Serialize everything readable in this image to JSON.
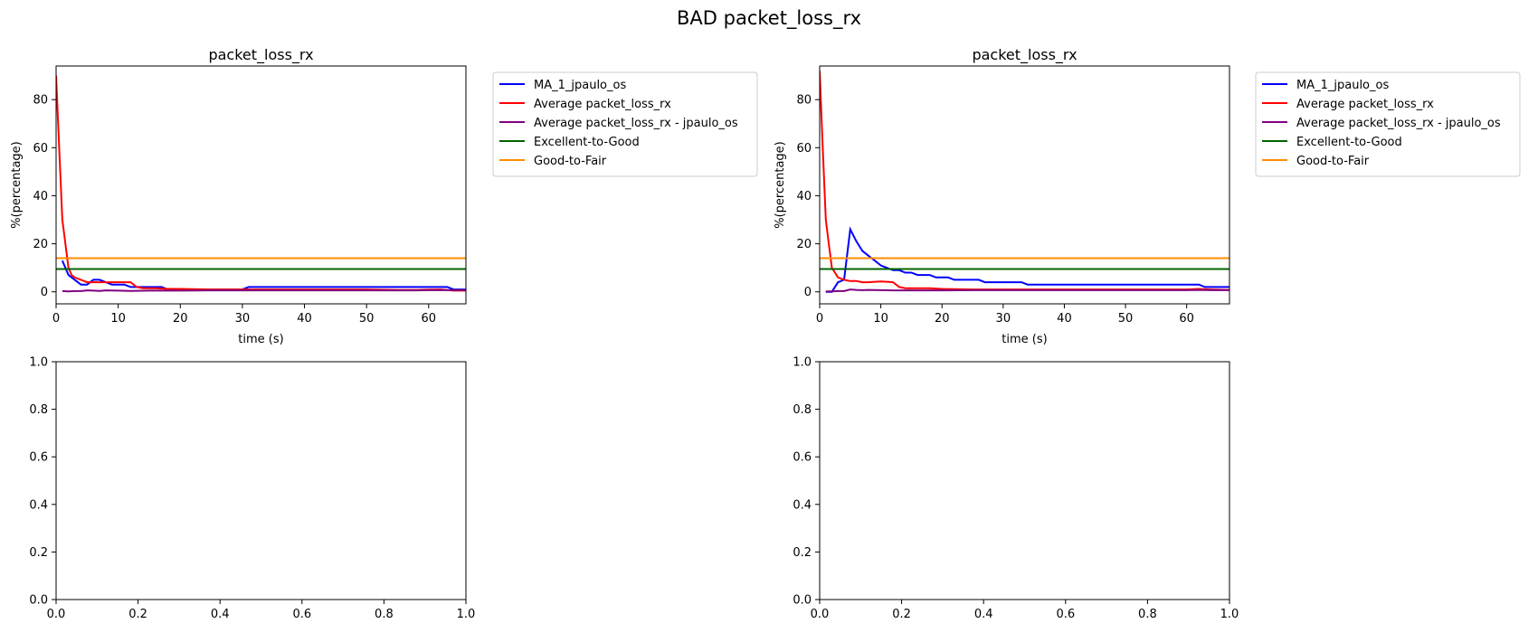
{
  "figure": {
    "suptitle": "BAD packet_loss_rx"
  },
  "colors": {
    "MA_1_jpaulo_os": "#0000ff",
    "Average packet_loss_rx": "#ff0000",
    "Average packet_loss_rx - jpaulo_os": "#800080",
    "Excellent-to-Good": "#006400",
    "Good-to-Fair": "#ff8c00"
  },
  "chart_data": [
    {
      "type": "line",
      "title": "packet_loss_rx",
      "xlabel": "time (s)",
      "ylabel": "%(percentage)",
      "xlim": [
        0,
        66
      ],
      "ylim": [
        -5,
        94
      ],
      "xticks": [
        0,
        10,
        20,
        30,
        40,
        50,
        60
      ],
      "yticks": [
        0,
        20,
        40,
        60,
        80
      ],
      "legend": "outside upper right",
      "series": [
        {
          "name": "MA_1_jpaulo_os",
          "x": [
            1,
            2,
            3,
            4,
            5,
            6,
            7,
            8,
            9,
            10,
            11,
            12,
            13,
            14,
            15,
            16,
            17,
            18,
            20,
            25,
            30,
            31,
            40,
            50,
            60,
            63,
            64,
            66
          ],
          "y": [
            13,
            7,
            5,
            3,
            3,
            5,
            5,
            4,
            3,
            3,
            3,
            2,
            2,
            2,
            2,
            2,
            2,
            1,
            1,
            1,
            1,
            2,
            2,
            2,
            2,
            2,
            1,
            1
          ]
        },
        {
          "name": "Average packet_loss_rx",
          "x": [
            0,
            0.5,
            1,
            1.5,
            2,
            2.5,
            3,
            4,
            5,
            6,
            7,
            8,
            9,
            10,
            11,
            12,
            13,
            14,
            16,
            18,
            20,
            25,
            30,
            40,
            50,
            55,
            58,
            60,
            62,
            64,
            66
          ],
          "y": [
            90,
            60,
            30,
            20,
            10,
            7,
            6,
            5,
            4,
            4,
            4,
            4,
            4,
            4,
            4,
            4,
            2,
            1.5,
            1.5,
            1.2,
            1.2,
            1.0,
            1.0,
            1.0,
            1.0,
            0.8,
            0.8,
            0.9,
            1.0,
            0.5,
            0.5
          ]
        },
        {
          "name": "Average packet_loss_rx - jpaulo_os",
          "x": [
            1,
            2,
            3,
            4,
            5,
            6,
            7,
            8,
            10,
            12,
            15,
            20,
            25,
            30,
            40,
            50,
            55,
            58,
            60,
            62,
            64,
            66
          ],
          "y": [
            0.3,
            0.2,
            0.3,
            0.3,
            0.6,
            0.5,
            0.4,
            0.6,
            0.5,
            0.4,
            0.5,
            0.5,
            0.6,
            0.6,
            0.6,
            0.6,
            0.6,
            0.6,
            0.7,
            0.7,
            0.7,
            0.7
          ]
        },
        {
          "name": "Excellent-to-Good",
          "x": [
            0,
            66
          ],
          "y": [
            9.5,
            9.5
          ]
        },
        {
          "name": "Good-to-Fair",
          "x": [
            0,
            66
          ],
          "y": [
            14,
            14
          ]
        }
      ]
    },
    {
      "type": "line",
      "title": "packet_loss_rx",
      "xlabel": "time (s)",
      "ylabel": "%(percentage)",
      "xlim": [
        0,
        67
      ],
      "ylim": [
        -5,
        94
      ],
      "xticks": [
        0,
        10,
        20,
        30,
        40,
        50,
        60
      ],
      "yticks": [
        0,
        20,
        40,
        60,
        80
      ],
      "legend": "outside upper right",
      "series": [
        {
          "name": "MA_1_jpaulo_os",
          "x": [
            1,
            2,
            3,
            4,
            5,
            6,
            7,
            8,
            9,
            10,
            11,
            12,
            13,
            14,
            15,
            16,
            17,
            18,
            19,
            20,
            21,
            22,
            23,
            24,
            25,
            26,
            27,
            28,
            30,
            32,
            33,
            34,
            36,
            40,
            50,
            60,
            62,
            63,
            65,
            67
          ],
          "y": [
            0,
            0,
            4,
            5,
            26,
            21,
            17,
            15,
            13,
            11,
            10,
            9,
            9,
            8,
            8,
            7,
            7,
            7,
            6,
            6,
            6,
            5,
            5,
            5,
            5,
            5,
            4,
            4,
            4,
            4,
            4,
            3,
            3,
            3,
            3,
            3,
            3,
            2,
            2,
            2
          ]
        },
        {
          "name": "Average packet_loss_rx",
          "x": [
            0,
            0.5,
            1,
            1.5,
            2,
            3,
            4,
            5,
            6,
            7,
            8,
            9,
            10,
            11,
            12,
            13,
            14,
            16,
            18,
            20,
            25,
            30,
            40,
            50,
            60,
            62,
            64,
            67
          ],
          "y": [
            92,
            60,
            30,
            20,
            10,
            6,
            5,
            4.5,
            4.5,
            4,
            4,
            4.2,
            4.3,
            4.2,
            4,
            2,
            1.5,
            1.5,
            1.5,
            1.2,
            1.0,
            1.0,
            1.0,
            1.0,
            1.0,
            1.2,
            1.0,
            0.8
          ]
        },
        {
          "name": "Average packet_loss_rx - jpaulo_os",
          "x": [
            1,
            2,
            3,
            4,
            5,
            6,
            7,
            8,
            10,
            12,
            15,
            20,
            25,
            30,
            40,
            50,
            60,
            62,
            64,
            67
          ],
          "y": [
            0.2,
            0.2,
            0.3,
            0.3,
            1.0,
            0.8,
            0.7,
            0.8,
            0.7,
            0.6,
            0.6,
            0.6,
            0.7,
            0.7,
            0.7,
            0.7,
            0.7,
            0.8,
            0.7,
            0.7
          ]
        },
        {
          "name": "Excellent-to-Good",
          "x": [
            0,
            67
          ],
          "y": [
            9.5,
            9.5
          ]
        },
        {
          "name": "Good-to-Fair",
          "x": [
            0,
            67
          ],
          "y": [
            14,
            14
          ]
        }
      ]
    },
    {
      "type": "line",
      "title": "",
      "xlabel": "",
      "ylabel": "",
      "xlim": [
        0,
        1
      ],
      "ylim": [
        0,
        1
      ],
      "xticks": [
        0.0,
        0.2,
        0.4,
        0.6,
        0.8,
        1.0
      ],
      "yticks": [
        0.0,
        0.2,
        0.4,
        0.6,
        0.8,
        1.0
      ],
      "series": []
    },
    {
      "type": "line",
      "title": "",
      "xlabel": "",
      "ylabel": "",
      "xlim": [
        0,
        1
      ],
      "ylim": [
        0,
        1
      ],
      "xticks": [
        0.0,
        0.2,
        0.4,
        0.6,
        0.8,
        1.0
      ],
      "yticks": [
        0.0,
        0.2,
        0.4,
        0.6,
        0.8,
        1.0
      ],
      "series": []
    }
  ]
}
